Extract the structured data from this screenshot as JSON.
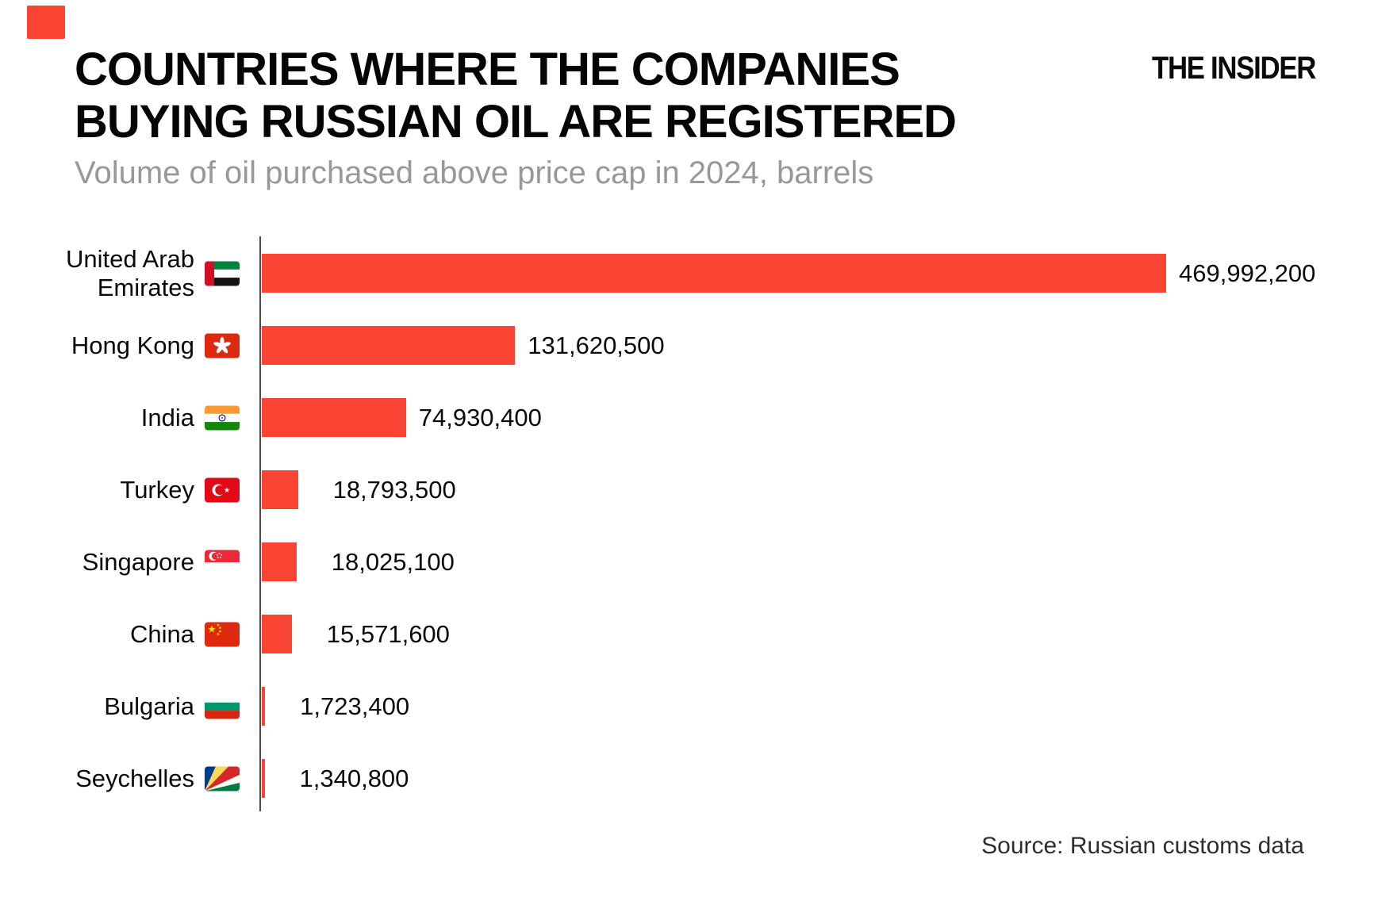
{
  "header": {
    "title_line1": "COUNTRIES WHERE THE COMPANIES",
    "title_line2": "BUYING RUSSIAN OIL ARE REGISTERED",
    "subtitle": "Volume of oil purchased above price cap in 2024, barrels",
    "logo_text": "THE INSIDER"
  },
  "footer": {
    "source": "Source: Russian customs data"
  },
  "colors": {
    "bar_red": "#FA4433",
    "brand_red": "#FA4433",
    "axis_gray": "#4d4d4d",
    "subtitle_gray": "#989898"
  },
  "chart_data": {
    "type": "bar",
    "orientation": "horizontal",
    "title": "COUNTRIES WHERE THE COMPANIES BUYING RUSSIAN OIL ARE REGISTERED",
    "subtitle": "Volume of oil purchased above price cap in 2024, barrels",
    "unit": "barrels",
    "xlim": [
      0,
      469992200
    ],
    "grid": false,
    "legend": false,
    "categories": [
      "United Arab\nEmirates",
      "Hong Kong",
      "India",
      "Turkey",
      "Singapore",
      "China",
      "Bulgaria",
      "Seychelles"
    ],
    "flag_icons": [
      "ae",
      "hk",
      "in",
      "tr",
      "sg",
      "cn",
      "bg",
      "sc"
    ],
    "values": [
      469992200,
      131620500,
      74930400,
      18793500,
      18025100,
      15571600,
      1723400,
      1340800
    ],
    "value_labels": [
      "469,992,200",
      "131,620,500",
      "74,930,400",
      "18,793,500",
      "18,025,100",
      "15,571,600",
      "1,723,400",
      "1,340,800"
    ]
  }
}
